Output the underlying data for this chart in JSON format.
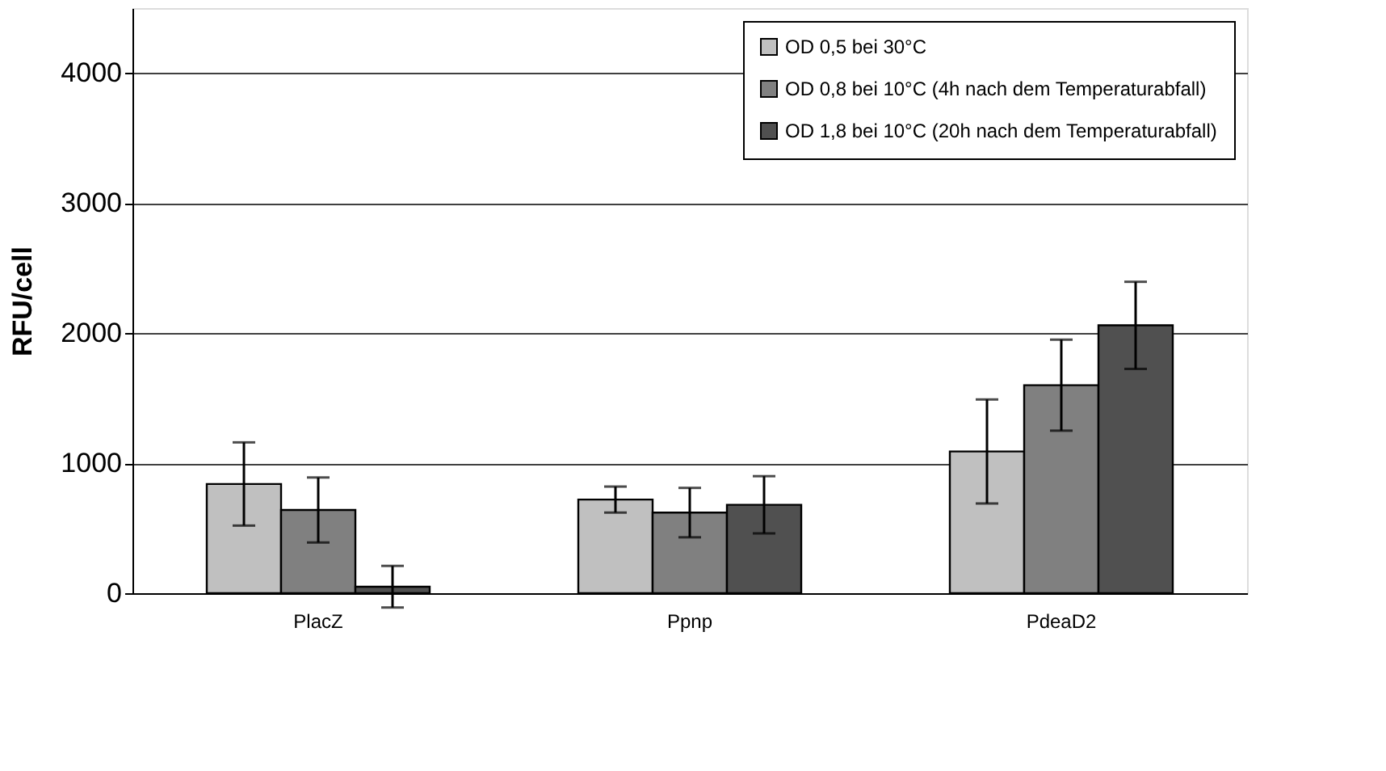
{
  "chart_data": {
    "type": "bar",
    "ylabel": "RFU/cell",
    "categories": [
      "PlacZ",
      "Ppnp",
      "PdeaD2"
    ],
    "series": [
      {
        "name": "OD 0,5 bei 30°C",
        "color": "#c0c0c0",
        "values": [
          840,
          720,
          1090
        ],
        "errors": [
          320,
          100,
          400
        ]
      },
      {
        "name": "OD 0,8 bei 10°C (4h nach dem Temperaturabfall)",
        "color": "#808080",
        "values": [
          640,
          620,
          1600
        ],
        "errors": [
          250,
          190,
          350
        ]
      },
      {
        "name": "OD 1,8 bei 10°C (20h nach dem Temperaturabfall)",
        "color": "#505050",
        "values": [
          50,
          680,
          2060
        ],
        "errors": [
          160,
          220,
          335
        ]
      }
    ],
    "ylim": [
      0,
      4500
    ],
    "yticks": [
      0,
      1000,
      2000,
      3000,
      4000
    ],
    "grid": "y",
    "legend": "top right"
  }
}
